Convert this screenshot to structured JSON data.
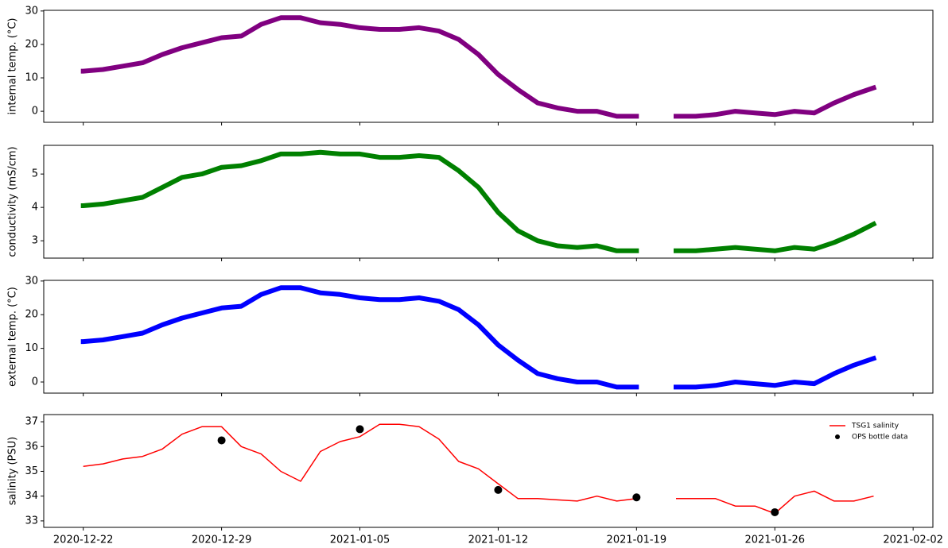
{
  "chart_data": [
    {
      "type": "line",
      "ylabel": "internal temp. (°C)",
      "color": "#800080",
      "x": [
        "2020-12-22",
        "2020-12-23",
        "2020-12-24",
        "2020-12-25",
        "2020-12-26",
        "2020-12-27",
        "2020-12-28",
        "2020-12-29",
        "2020-12-30",
        "2020-12-31",
        "2021-01-01",
        "2021-01-02",
        "2021-01-03",
        "2021-01-04",
        "2021-01-05",
        "2021-01-06",
        "2021-01-07",
        "2021-01-08",
        "2021-01-09",
        "2021-01-10",
        "2021-01-11",
        "2021-01-12",
        "2021-01-13",
        "2021-01-14",
        "2021-01-15",
        "2021-01-16",
        "2021-01-17",
        "2021-01-18",
        "2021-01-19",
        "2021-01-20",
        "2021-01-21",
        "2021-01-22",
        "2021-01-23",
        "2021-01-24",
        "2021-01-25",
        "2021-01-26",
        "2021-01-27",
        "2021-01-28",
        "2021-01-29",
        "2021-01-30",
        "2021-01-31"
      ],
      "values": [
        12,
        12.5,
        13.5,
        14.5,
        17,
        19,
        20.5,
        22,
        22.5,
        26,
        28,
        28,
        26.5,
        26,
        25,
        24.5,
        24.5,
        25,
        24,
        21.5,
        17,
        11,
        6.5,
        2.5,
        1,
        0,
        0,
        -1.5,
        -1.5,
        null,
        -1.5,
        -1.5,
        -1,
        0,
        -0.5,
        -1,
        0,
        -0.5,
        2.5,
        5,
        7
      ],
      "xlim": [
        "2020-12-20",
        "2021-02-03"
      ],
      "ylim": [
        -3.3,
        30.2
      ],
      "yticks": [
        0,
        10,
        20,
        30
      ]
    },
    {
      "type": "line",
      "ylabel": "conductivity (mS/cm)",
      "color": "#008000",
      "x": [
        "2020-12-22",
        "2020-12-23",
        "2020-12-24",
        "2020-12-25",
        "2020-12-26",
        "2020-12-27",
        "2020-12-28",
        "2020-12-29",
        "2020-12-30",
        "2020-12-31",
        "2021-01-01",
        "2021-01-02",
        "2021-01-03",
        "2021-01-04",
        "2021-01-05",
        "2021-01-06",
        "2021-01-07",
        "2021-01-08",
        "2021-01-09",
        "2021-01-10",
        "2021-01-11",
        "2021-01-12",
        "2021-01-13",
        "2021-01-14",
        "2021-01-15",
        "2021-01-16",
        "2021-01-17",
        "2021-01-18",
        "2021-01-19",
        "2021-01-20",
        "2021-01-21",
        "2021-01-22",
        "2021-01-23",
        "2021-01-24",
        "2021-01-25",
        "2021-01-26",
        "2021-01-27",
        "2021-01-28",
        "2021-01-29",
        "2021-01-30",
        "2021-01-31"
      ],
      "values": [
        4.05,
        4.1,
        4.2,
        4.3,
        4.6,
        4.9,
        5.0,
        5.2,
        5.25,
        5.4,
        5.6,
        5.6,
        5.65,
        5.6,
        5.6,
        5.5,
        5.5,
        5.55,
        5.5,
        5.1,
        4.6,
        3.85,
        3.3,
        3.0,
        2.85,
        2.8,
        2.85,
        2.7,
        2.7,
        null,
        2.7,
        2.7,
        2.75,
        2.8,
        2.75,
        2.7,
        2.8,
        2.75,
        2.95,
        3.2,
        3.5
      ],
      "xlim": [
        "2020-12-20",
        "2021-02-03"
      ],
      "ylim": [
        2.48,
        5.86
      ],
      "yticks": [
        3,
        4,
        5
      ]
    },
    {
      "type": "line",
      "ylabel": "external temp. (°C)",
      "color": "#0000ff",
      "x": [
        "2020-12-22",
        "2020-12-23",
        "2020-12-24",
        "2020-12-25",
        "2020-12-26",
        "2020-12-27",
        "2020-12-28",
        "2020-12-29",
        "2020-12-30",
        "2020-12-31",
        "2021-01-01",
        "2021-01-02",
        "2021-01-03",
        "2021-01-04",
        "2021-01-05",
        "2021-01-06",
        "2021-01-07",
        "2021-01-08",
        "2021-01-09",
        "2021-01-10",
        "2021-01-11",
        "2021-01-12",
        "2021-01-13",
        "2021-01-14",
        "2021-01-15",
        "2021-01-16",
        "2021-01-17",
        "2021-01-18",
        "2021-01-19",
        "2021-01-20",
        "2021-01-21",
        "2021-01-22",
        "2021-01-23",
        "2021-01-24",
        "2021-01-25",
        "2021-01-26",
        "2021-01-27",
        "2021-01-28",
        "2021-01-29",
        "2021-01-30",
        "2021-01-31"
      ],
      "values": [
        12,
        12.5,
        13.5,
        14.5,
        17,
        19,
        20.5,
        22,
        22.5,
        26,
        28,
        28,
        26.5,
        26,
        25,
        24.5,
        24.5,
        25,
        24,
        21.5,
        17,
        11,
        6.5,
        2.5,
        1,
        0,
        0,
        -1.5,
        -1.5,
        null,
        -1.5,
        -1.5,
        -1,
        0,
        -0.5,
        -1,
        0,
        -0.5,
        2.5,
        5,
        7
      ],
      "xlim": [
        "2020-12-20",
        "2021-02-03"
      ],
      "ylim": [
        -3.3,
        30.2
      ],
      "yticks": [
        0,
        10,
        20,
        30
      ]
    },
    {
      "type": "line",
      "ylabel": "salinity (PSU)",
      "legend": "upper right",
      "x": [
        "2020-12-22",
        "2020-12-23",
        "2020-12-24",
        "2020-12-25",
        "2020-12-26",
        "2020-12-27",
        "2020-12-28",
        "2020-12-29",
        "2020-12-30",
        "2020-12-31",
        "2021-01-01",
        "2021-01-02",
        "2021-01-03",
        "2021-01-04",
        "2021-01-05",
        "2021-01-06",
        "2021-01-07",
        "2021-01-08",
        "2021-01-09",
        "2021-01-10",
        "2021-01-11",
        "2021-01-12",
        "2021-01-13",
        "2021-01-14",
        "2021-01-15",
        "2021-01-16",
        "2021-01-17",
        "2021-01-18",
        "2021-01-19",
        "2021-01-20",
        "2021-01-21",
        "2021-01-22",
        "2021-01-23",
        "2021-01-24",
        "2021-01-25",
        "2021-01-26",
        "2021-01-27",
        "2021-01-28",
        "2021-01-29",
        "2021-01-30",
        "2021-01-31"
      ],
      "series": [
        {
          "name": "TSG1 salinity",
          "color": "#ff0000",
          "values": [
            35.2,
            35.3,
            35.5,
            35.6,
            35.9,
            36.5,
            36.8,
            36.8,
            36.0,
            35.7,
            35.0,
            34.6,
            35.8,
            36.2,
            36.4,
            36.9,
            36.9,
            36.8,
            36.3,
            35.4,
            35.1,
            34.5,
            33.9,
            33.9,
            33.85,
            33.8,
            34.0,
            33.8,
            33.9,
            null,
            33.9,
            33.9,
            33.9,
            33.6,
            33.6,
            33.3,
            34.0,
            34.2,
            33.8,
            33.8,
            34.0
          ]
        },
        {
          "name": "OPS bottle data",
          "color": "#000000",
          "marker": "circle",
          "x": [
            "2020-12-29",
            "2021-01-05",
            "2021-01-12",
            "2021-01-19",
            "2021-01-26"
          ],
          "values": [
            36.25,
            36.7,
            34.25,
            33.95,
            33.35
          ]
        }
      ],
      "xlim": [
        "2020-12-20",
        "2021-02-03"
      ],
      "ylim": [
        32.74,
        37.29
      ],
      "yticks": [
        33,
        34,
        35,
        36,
        37
      ],
      "xticks": [
        "2020-12-22",
        "2020-12-29",
        "2021-01-05",
        "2021-01-12",
        "2021-01-19",
        "2021-01-26",
        "2021-02-02"
      ]
    }
  ]
}
